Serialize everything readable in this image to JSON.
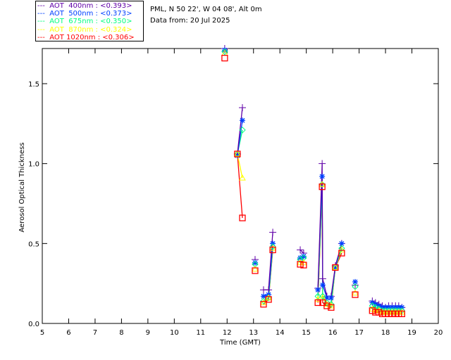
{
  "chart_data": {
    "type": "scatter",
    "title": "",
    "xlabel": "Time (GMT)",
    "ylabel": "Aerosol Optical Thickness",
    "xlim": [
      5,
      20
    ],
    "ylim": [
      0,
      1.72
    ],
    "xticks": [
      "5",
      "6",
      "7",
      "8",
      "9",
      "10",
      "11",
      "12",
      "13",
      "14",
      "15",
      "16",
      "17",
      "18",
      "19",
      "20"
    ],
    "yticks": [
      "0.0",
      "0.5",
      "1.0",
      "1.5"
    ],
    "x": [
      11.91,
      12.39,
      12.58,
      13.06,
      13.38,
      13.57,
      13.73,
      14.77,
      14.9,
      15.44,
      15.6,
      15.62,
      15.78,
      15.94,
      16.1,
      16.34,
      16.85,
      17.5,
      17.62,
      17.75,
      17.88,
      18.0,
      18.12,
      18.25,
      18.38,
      18.5,
      18.62
    ],
    "series": [
      {
        "name": "AOT  400nm : <0.393>",
        "color": "#6000a8",
        "marker": "plus",
        "values": [
          1.72,
          1.06,
          1.35,
          0.4,
          0.21,
          0.21,
          0.57,
          0.46,
          0.44,
          0.22,
          1.0,
          0.28,
          0.17,
          0.17,
          0.36,
          0.5,
          0.24,
          0.14,
          0.13,
          0.12,
          0.11,
          0.1,
          0.11,
          0.11,
          0.11,
          0.11,
          0.1
        ]
      },
      {
        "name": "AOT  500nm : <0.373>",
        "color": "#0040ff",
        "marker": "star",
        "values": [
          1.71,
          1.05,
          1.27,
          0.38,
          0.17,
          0.18,
          0.5,
          0.41,
          0.42,
          0.21,
          0.92,
          0.24,
          0.16,
          0.16,
          0.35,
          0.5,
          0.26,
          0.13,
          0.12,
          0.11,
          0.1,
          0.1,
          0.1,
          0.1,
          0.1,
          0.1,
          0.1
        ]
      },
      {
        "name": "AOT  675nm : <0.350>",
        "color": "#00ff80",
        "marker": "diamond",
        "values": [
          1.7,
          1.06,
          1.21,
          0.37,
          0.14,
          0.16,
          0.48,
          0.4,
          0.41,
          0.17,
          0.87,
          0.17,
          0.13,
          0.12,
          0.35,
          0.47,
          0.23,
          0.11,
          0.1,
          0.09,
          0.08,
          0.08,
          0.08,
          0.08,
          0.08,
          0.08,
          0.08
        ]
      },
      {
        "name": "AOT  870nm : <0.324>",
        "color": "#ffff00",
        "marker": "triangle",
        "values": [
          1.69,
          1.06,
          0.91,
          0.34,
          0.13,
          0.16,
          0.47,
          0.38,
          0.38,
          0.15,
          0.87,
          0.16,
          0.12,
          0.11,
          0.35,
          0.46,
          0.19,
          0.09,
          0.08,
          0.08,
          0.07,
          0.07,
          0.07,
          0.07,
          0.07,
          0.07,
          0.07
        ]
      },
      {
        "name": "AOT 1020nm : <0.306>",
        "color": "#ff0000",
        "marker": "square",
        "values": [
          1.66,
          1.06,
          0.66,
          0.33,
          0.12,
          0.15,
          0.46,
          0.37,
          0.365,
          0.13,
          0.855,
          0.13,
          0.11,
          0.1,
          0.35,
          0.44,
          0.18,
          0.08,
          0.07,
          0.07,
          0.06,
          0.06,
          0.06,
          0.06,
          0.06,
          0.06,
          0.06
        ]
      }
    ]
  },
  "info": {
    "location": "PML, N 50 22', W 04 08', Alt 0m",
    "date": "Data from: 20 Jul 2025"
  }
}
